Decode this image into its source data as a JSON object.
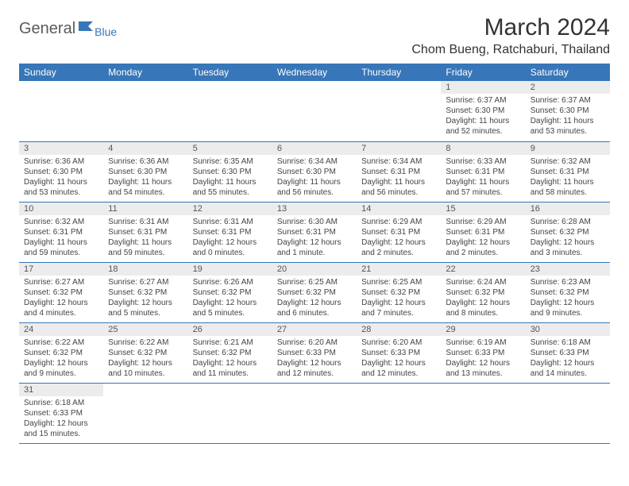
{
  "logo": {
    "text1": "General",
    "text2": "Blue"
  },
  "title": "March 2024",
  "location": "Chom Bueng, Ratchaburi, Thailand",
  "weekdays": [
    "Sunday",
    "Monday",
    "Tuesday",
    "Wednesday",
    "Thursday",
    "Friday",
    "Saturday"
  ],
  "colors": {
    "header_bg": "#3776b8",
    "header_fg": "#ffffff",
    "daynum_bg": "#ececec",
    "text": "#333333",
    "border": "#3776b8"
  },
  "weeks": [
    [
      {
        "empty": true
      },
      {
        "empty": true
      },
      {
        "empty": true
      },
      {
        "empty": true
      },
      {
        "empty": true
      },
      {
        "n": "1",
        "sr": "Sunrise: 6:37 AM",
        "ss": "Sunset: 6:30 PM",
        "dl": "Daylight: 11 hours and 52 minutes."
      },
      {
        "n": "2",
        "sr": "Sunrise: 6:37 AM",
        "ss": "Sunset: 6:30 PM",
        "dl": "Daylight: 11 hours and 53 minutes."
      }
    ],
    [
      {
        "n": "3",
        "sr": "Sunrise: 6:36 AM",
        "ss": "Sunset: 6:30 PM",
        "dl": "Daylight: 11 hours and 53 minutes."
      },
      {
        "n": "4",
        "sr": "Sunrise: 6:36 AM",
        "ss": "Sunset: 6:30 PM",
        "dl": "Daylight: 11 hours and 54 minutes."
      },
      {
        "n": "5",
        "sr": "Sunrise: 6:35 AM",
        "ss": "Sunset: 6:30 PM",
        "dl": "Daylight: 11 hours and 55 minutes."
      },
      {
        "n": "6",
        "sr": "Sunrise: 6:34 AM",
        "ss": "Sunset: 6:30 PM",
        "dl": "Daylight: 11 hours and 56 minutes."
      },
      {
        "n": "7",
        "sr": "Sunrise: 6:34 AM",
        "ss": "Sunset: 6:31 PM",
        "dl": "Daylight: 11 hours and 56 minutes."
      },
      {
        "n": "8",
        "sr": "Sunrise: 6:33 AM",
        "ss": "Sunset: 6:31 PM",
        "dl": "Daylight: 11 hours and 57 minutes."
      },
      {
        "n": "9",
        "sr": "Sunrise: 6:32 AM",
        "ss": "Sunset: 6:31 PM",
        "dl": "Daylight: 11 hours and 58 minutes."
      }
    ],
    [
      {
        "n": "10",
        "sr": "Sunrise: 6:32 AM",
        "ss": "Sunset: 6:31 PM",
        "dl": "Daylight: 11 hours and 59 minutes."
      },
      {
        "n": "11",
        "sr": "Sunrise: 6:31 AM",
        "ss": "Sunset: 6:31 PM",
        "dl": "Daylight: 11 hours and 59 minutes."
      },
      {
        "n": "12",
        "sr": "Sunrise: 6:31 AM",
        "ss": "Sunset: 6:31 PM",
        "dl": "Daylight: 12 hours and 0 minutes."
      },
      {
        "n": "13",
        "sr": "Sunrise: 6:30 AM",
        "ss": "Sunset: 6:31 PM",
        "dl": "Daylight: 12 hours and 1 minute."
      },
      {
        "n": "14",
        "sr": "Sunrise: 6:29 AM",
        "ss": "Sunset: 6:31 PM",
        "dl": "Daylight: 12 hours and 2 minutes."
      },
      {
        "n": "15",
        "sr": "Sunrise: 6:29 AM",
        "ss": "Sunset: 6:31 PM",
        "dl": "Daylight: 12 hours and 2 minutes."
      },
      {
        "n": "16",
        "sr": "Sunrise: 6:28 AM",
        "ss": "Sunset: 6:32 PM",
        "dl": "Daylight: 12 hours and 3 minutes."
      }
    ],
    [
      {
        "n": "17",
        "sr": "Sunrise: 6:27 AM",
        "ss": "Sunset: 6:32 PM",
        "dl": "Daylight: 12 hours and 4 minutes."
      },
      {
        "n": "18",
        "sr": "Sunrise: 6:27 AM",
        "ss": "Sunset: 6:32 PM",
        "dl": "Daylight: 12 hours and 5 minutes."
      },
      {
        "n": "19",
        "sr": "Sunrise: 6:26 AM",
        "ss": "Sunset: 6:32 PM",
        "dl": "Daylight: 12 hours and 5 minutes."
      },
      {
        "n": "20",
        "sr": "Sunrise: 6:25 AM",
        "ss": "Sunset: 6:32 PM",
        "dl": "Daylight: 12 hours and 6 minutes."
      },
      {
        "n": "21",
        "sr": "Sunrise: 6:25 AM",
        "ss": "Sunset: 6:32 PM",
        "dl": "Daylight: 12 hours and 7 minutes."
      },
      {
        "n": "22",
        "sr": "Sunrise: 6:24 AM",
        "ss": "Sunset: 6:32 PM",
        "dl": "Daylight: 12 hours and 8 minutes."
      },
      {
        "n": "23",
        "sr": "Sunrise: 6:23 AM",
        "ss": "Sunset: 6:32 PM",
        "dl": "Daylight: 12 hours and 9 minutes."
      }
    ],
    [
      {
        "n": "24",
        "sr": "Sunrise: 6:22 AM",
        "ss": "Sunset: 6:32 PM",
        "dl": "Daylight: 12 hours and 9 minutes."
      },
      {
        "n": "25",
        "sr": "Sunrise: 6:22 AM",
        "ss": "Sunset: 6:32 PM",
        "dl": "Daylight: 12 hours and 10 minutes."
      },
      {
        "n": "26",
        "sr": "Sunrise: 6:21 AM",
        "ss": "Sunset: 6:32 PM",
        "dl": "Daylight: 12 hours and 11 minutes."
      },
      {
        "n": "27",
        "sr": "Sunrise: 6:20 AM",
        "ss": "Sunset: 6:33 PM",
        "dl": "Daylight: 12 hours and 12 minutes."
      },
      {
        "n": "28",
        "sr": "Sunrise: 6:20 AM",
        "ss": "Sunset: 6:33 PM",
        "dl": "Daylight: 12 hours and 12 minutes."
      },
      {
        "n": "29",
        "sr": "Sunrise: 6:19 AM",
        "ss": "Sunset: 6:33 PM",
        "dl": "Daylight: 12 hours and 13 minutes."
      },
      {
        "n": "30",
        "sr": "Sunrise: 6:18 AM",
        "ss": "Sunset: 6:33 PM",
        "dl": "Daylight: 12 hours and 14 minutes."
      }
    ],
    [
      {
        "n": "31",
        "sr": "Sunrise: 6:18 AM",
        "ss": "Sunset: 6:33 PM",
        "dl": "Daylight: 12 hours and 15 minutes."
      },
      {
        "empty": true
      },
      {
        "empty": true
      },
      {
        "empty": true
      },
      {
        "empty": true
      },
      {
        "empty": true
      },
      {
        "empty": true
      }
    ]
  ]
}
